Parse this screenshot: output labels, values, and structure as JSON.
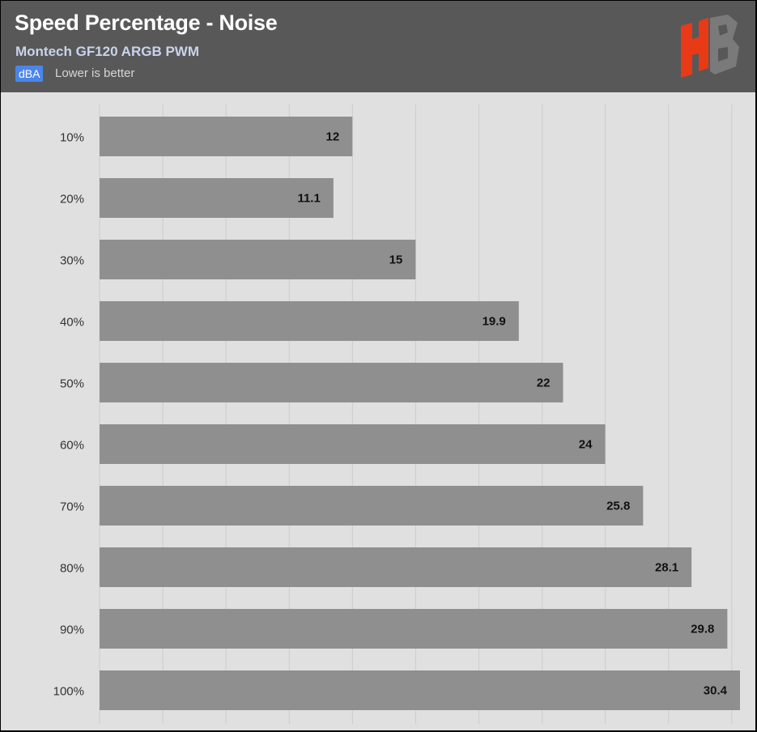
{
  "header": {
    "title": "Speed Percentage - Noise",
    "subtitle": "Montech GF120 ARGB PWM",
    "unit": "dBA",
    "note": "Lower is better",
    "logo": "HB"
  },
  "colors": {
    "header_bg": "#585858",
    "plot_bg": "#e0e0e0",
    "bar": "#8f8f8f",
    "badge": "#4a86e8",
    "logo_red": "#e83a16",
    "logo_gray": "#7a7a7a"
  },
  "chart_data": {
    "type": "bar",
    "orientation": "horizontal",
    "categories": [
      "10%",
      "20%",
      "30%",
      "40%",
      "50%",
      "60%",
      "70%",
      "80%",
      "90%",
      "100%"
    ],
    "values": [
      12,
      11.1,
      15,
      19.9,
      22,
      24,
      25.8,
      28.1,
      29.8,
      30.4
    ],
    "value_labels": [
      "12",
      "11.1",
      "15",
      "19.9",
      "22",
      "24",
      "25.8",
      "28.1",
      "29.8",
      "30.4"
    ],
    "title": "Speed Percentage - Noise",
    "subtitle": "Montech GF120 ARGB PWM",
    "unit": "dBA",
    "xlim": [
      0,
      30.4
    ],
    "grid": true,
    "legend": "none"
  }
}
